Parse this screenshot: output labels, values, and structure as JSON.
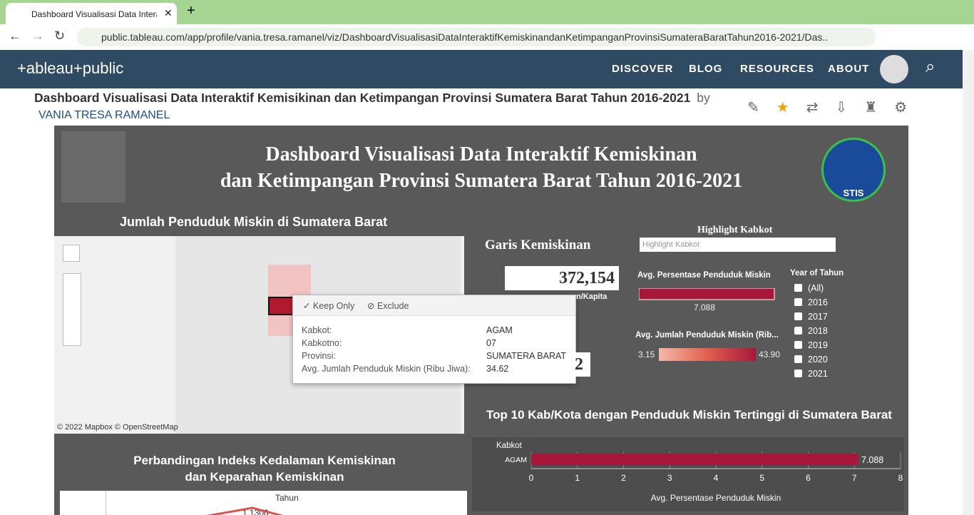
{
  "browser": {
    "tab_title": "Dashboard Visualisasi Data Intera",
    "url": "public.tableau.com/app/profile/vania.tresa.ramanel/viz/DashboardVisualisasiDataInteraktifKemiskinandanKetimpanganProvinsiSumateraBaratTahun2016-2021/Das..."
  },
  "site_nav": {
    "logo": "+ableau+public",
    "links": [
      "DISCOVER",
      "BLOG",
      "RESOURCES",
      "ABOUT"
    ]
  },
  "viz_header": {
    "title": "Dashboard Visualisasi Data Interaktif Kemisikinan dan Ketimpangan Provinsi Sumatera Barat Tahun 2016-2021",
    "by": "by",
    "author": "VANIA TRESA RAMANEL"
  },
  "dashboard": {
    "title_lines": [
      "Dashboard Visualisasi Data Interaktif Kemiskinan",
      "dan Ketimpangan Provinsi Sumatera Barat Tahun 2016-2021"
    ],
    "logo_right": "STIS",
    "map": {
      "title": "Jumlah Penduduk Miskin di Sumatera Barat",
      "attribution": "© 2022 Mapbox  © OpenStreetMap",
      "tooltip": {
        "actions": [
          "Keep Only",
          "Exclude"
        ],
        "fields": [
          [
            "Kabkot:",
            "AGAM"
          ],
          [
            "Kabkotno:",
            "07"
          ],
          [
            "Provinsi:",
            "SUMATERA BARAT"
          ],
          [
            "Avg. Jumlah Penduduk Miskin (Ribu Jiwa):",
            "34.62"
          ]
        ]
      }
    },
    "poverty_line": {
      "title": "Garis Kemiskinan",
      "value": "372,154",
      "unit_partial": "n/Kapita",
      "hidden_partial": "2"
    },
    "highlight": {
      "title": "Highlight Kabkot",
      "placeholder": "Highlight Kabkot"
    },
    "avg_percentage": {
      "title": "Avg. Persentase Penduduk Miskin",
      "value": 7.088
    },
    "avg_count_legend": {
      "title": "Avg. Jumlah Penduduk Miskin (Rib...",
      "min": "3.15",
      "max": "43.90"
    },
    "year_filter": {
      "title": "Year of Tahun",
      "options": [
        "(All)",
        "2016",
        "2017",
        "2018",
        "2019",
        "2020",
        "2021"
      ]
    },
    "bottom_chart": {
      "title_lines": [
        "Perbandingan Indeks Kedalaman Kemiskinan",
        "dan Keparahan Kemiskinan"
      ],
      "column_header": "Tahun",
      "visible_label": "1.1300"
    }
  },
  "chart_data": {
    "type": "bar",
    "title": "Top 10 Kab/Kota dengan Penduduk Miskin Tertinggi di Sumatera Barat",
    "category_header": "Kabkot",
    "categories": [
      "AGAM"
    ],
    "values": [
      7.088
    ],
    "color": "#a8173a",
    "xlim": [
      0,
      8
    ],
    "xticks": [
      0,
      1,
      2,
      3,
      4,
      5,
      6,
      7,
      8
    ],
    "xlabel": "Avg. Persentase Penduduk Miskin"
  }
}
